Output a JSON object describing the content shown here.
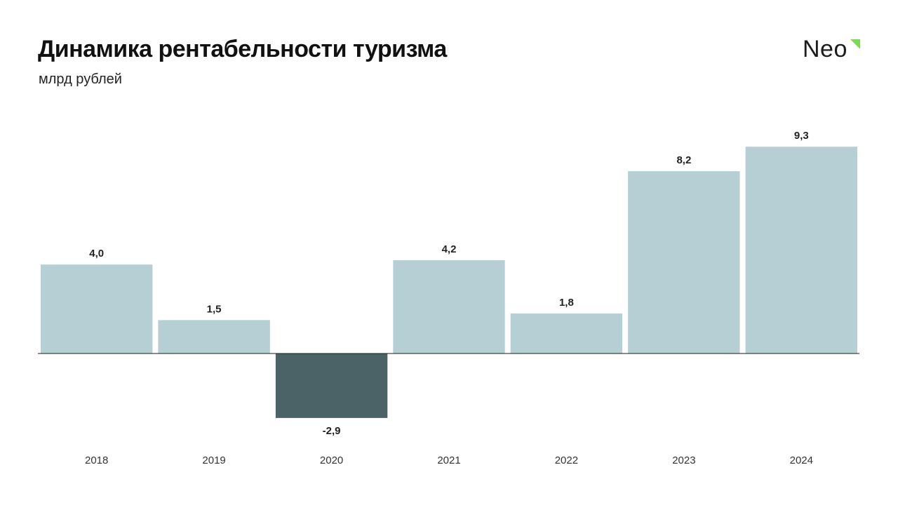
{
  "title": "Динамика рентабельности туризма",
  "subtitle": "млрд рублей",
  "logo": {
    "text": "Neo",
    "accent_color": "#7ed957"
  },
  "chart_data": {
    "type": "bar",
    "title": "Динамика рентабельности туризма",
    "ylabel": "млрд рублей",
    "xlabel": "",
    "categories": [
      "2018",
      "2019",
      "2020",
      "2021",
      "2022",
      "2023",
      "2024"
    ],
    "values": [
      4.0,
      1.5,
      -2.9,
      4.2,
      1.8,
      8.2,
      9.3
    ],
    "value_labels": [
      "4,0",
      "1,5",
      "-2,9",
      "4,2",
      "1,8",
      "8,2",
      "9,3"
    ],
    "ylim": [
      -2.9,
      9.3
    ],
    "grid": false,
    "legend": "none",
    "colors": {
      "positive": "#b6cfd4",
      "negative": "#4b6367",
      "axis": "#1a1a1a"
    }
  }
}
